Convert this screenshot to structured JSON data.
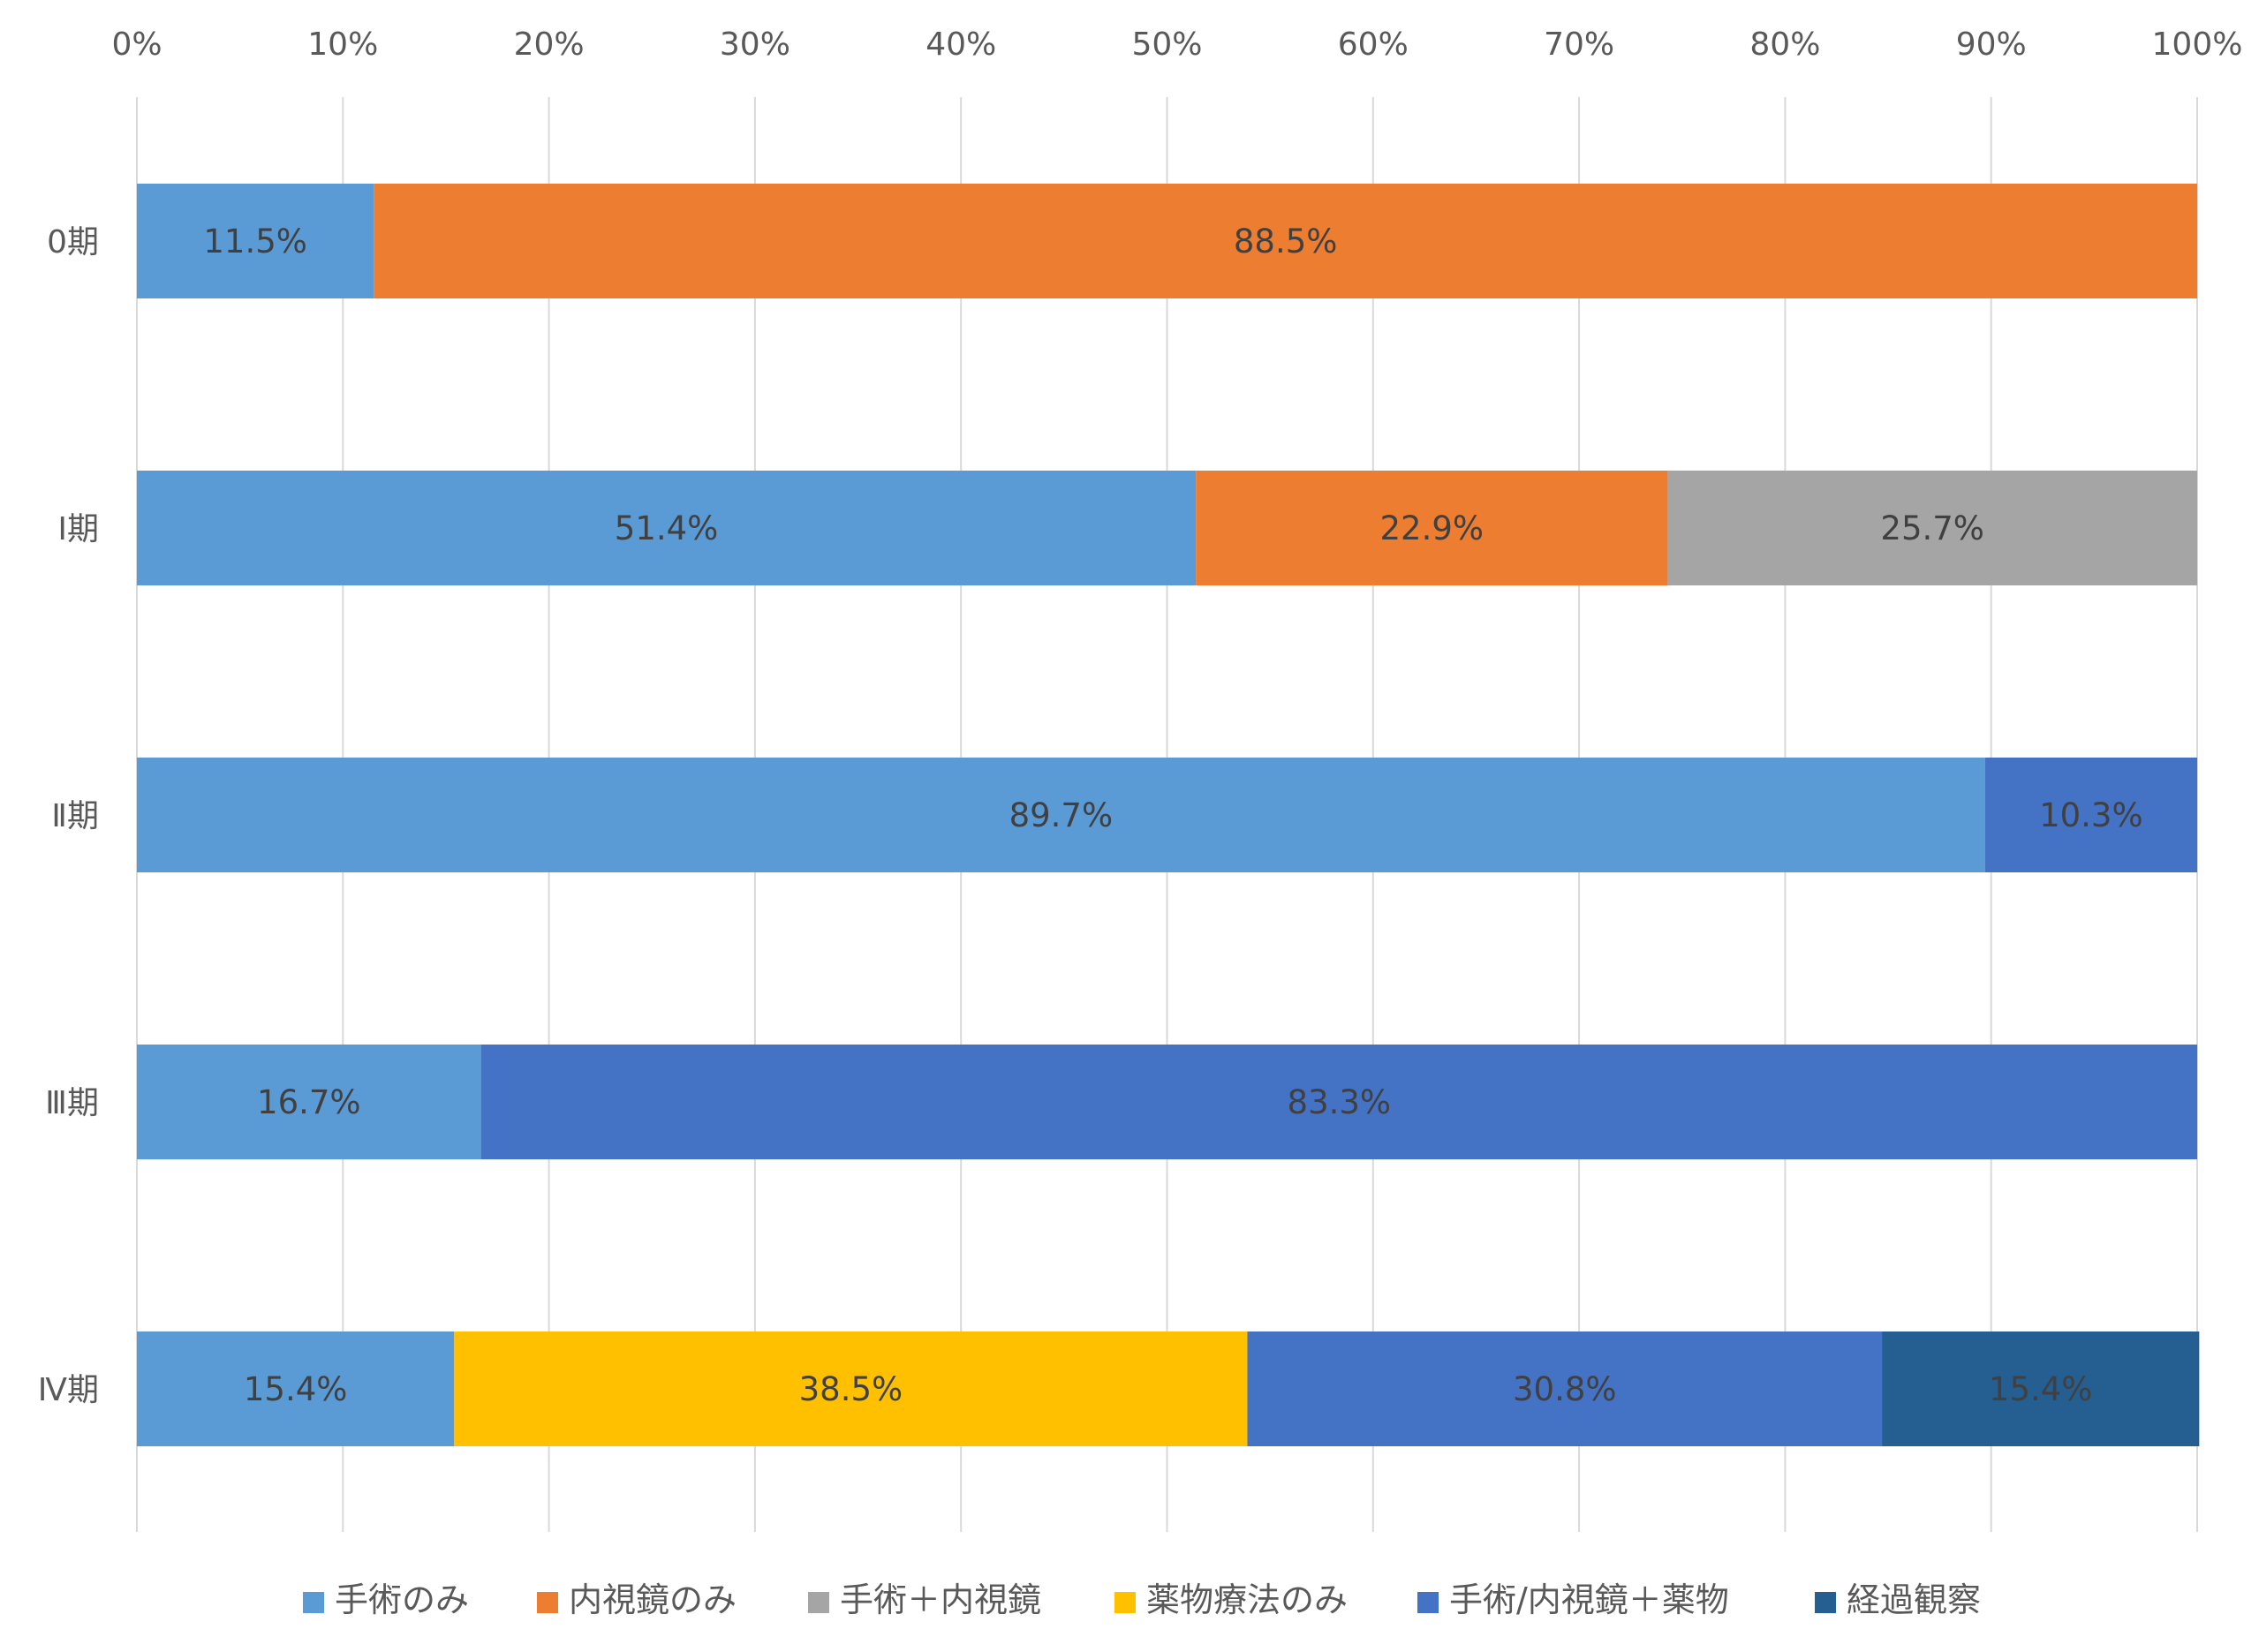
{
  "chart_data": {
    "type": "bar",
    "orientation": "horizontal",
    "stacked": "percent",
    "categories": [
      "0期",
      "Ⅰ期",
      "Ⅱ期",
      "Ⅲ期",
      "Ⅳ期"
    ],
    "x_ticks": [
      "0%",
      "10%",
      "20%",
      "30%",
      "40%",
      "50%",
      "60%",
      "70%",
      "80%",
      "90%",
      "100%"
    ],
    "xlim": [
      0,
      100
    ],
    "grid": true,
    "legend_position": "bottom",
    "series": [
      {
        "name": "手術のみ",
        "color": "#5B9BD5",
        "values": [
          11.5,
          51.4,
          89.7,
          16.7,
          15.4
        ],
        "labels": [
          "11.5%",
          "51.4%",
          "89.7%",
          "16.7%",
          "15.4%"
        ]
      },
      {
        "name": "内視鏡のみ",
        "color": "#ED7D31",
        "values": [
          88.5,
          22.9,
          0,
          0,
          0
        ],
        "labels": [
          "88.5%",
          "22.9%",
          "",
          "",
          ""
        ]
      },
      {
        "name": "手術＋内視鏡",
        "color": "#A5A5A5",
        "values": [
          0,
          25.7,
          0,
          0,
          0
        ],
        "labels": [
          "",
          "25.7%",
          "",
          "",
          ""
        ]
      },
      {
        "name": "薬物療法のみ",
        "color": "#FFC000",
        "values": [
          0,
          0,
          0,
          0,
          38.5
        ],
        "labels": [
          "",
          "",
          "",
          "",
          "38.5%"
        ]
      },
      {
        "name": "手術/内視鏡＋薬物",
        "color": "#4472C4",
        "values": [
          0,
          0,
          10.3,
          83.3,
          30.8
        ],
        "labels": [
          "",
          "",
          "10.3%",
          "83.3%",
          "30.8%"
        ]
      },
      {
        "name": "経過観察",
        "color": "#255E91",
        "values": [
          0,
          0,
          0,
          0,
          15.4
        ],
        "labels": [
          "",
          "",
          "",
          "",
          "15.4%"
        ]
      }
    ]
  }
}
